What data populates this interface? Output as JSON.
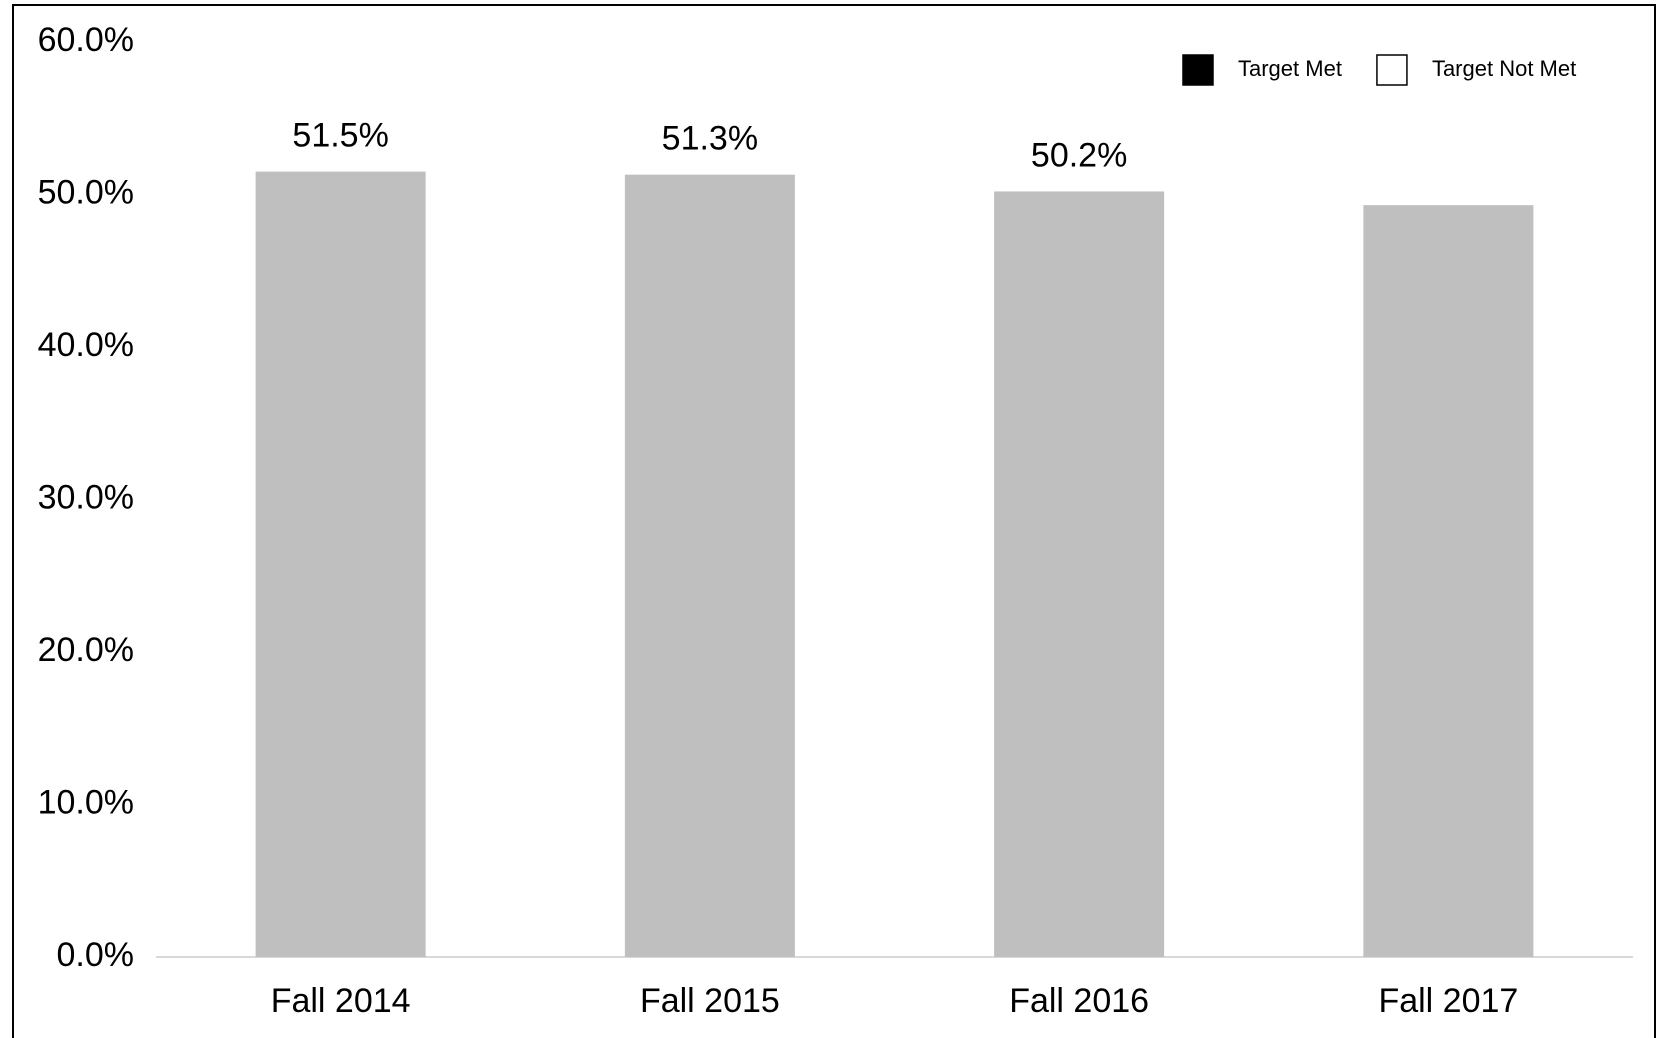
{
  "chart_data": {
    "type": "bar",
    "categories": [
      "Fall 2014",
      "Fall 2015",
      "Fall 2016",
      "Fall 2017"
    ],
    "values": [
      51.5,
      51.3,
      50.2,
      49.3
    ],
    "value_labels": [
      "51.5%",
      "51.3%",
      "50.2%",
      null
    ],
    "color": "#bfbfbf",
    "ylim": [
      0,
      60
    ],
    "yticks": [
      {
        "value": 0,
        "label": "0.0%"
      },
      {
        "value": 10,
        "label": "10.0%"
      },
      {
        "value": 20,
        "label": "20.0%"
      },
      {
        "value": 30,
        "label": "30.0%"
      },
      {
        "value": 40,
        "label": "40.0%"
      },
      {
        "value": 50,
        "label": "50.0%"
      },
      {
        "value": 60,
        "label": "60.0%"
      }
    ],
    "grid": false,
    "legend": [
      {
        "name": "Target Met",
        "color": "#000000"
      },
      {
        "name": "Target Not Met",
        "color": "#ffffff"
      }
    ],
    "legend_position": "upper right"
  }
}
